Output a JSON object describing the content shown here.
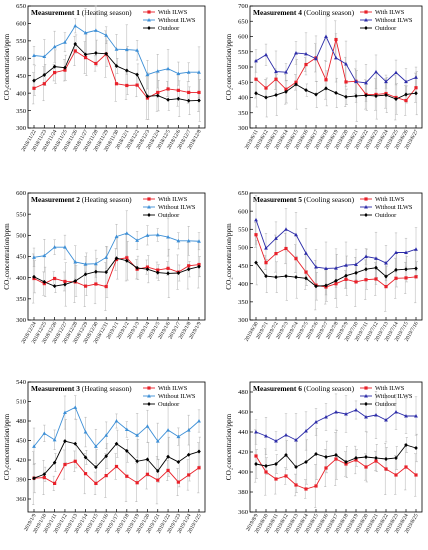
{
  "colors": {
    "with_ilws": "#e8212a",
    "without_ilws": "#3d8fd6",
    "without_ilws_cooling": "#2c2ca8",
    "outdoor": "#000000",
    "error_bars": "#b0b0b0",
    "frame": "#000000"
  },
  "chart_data": [
    {
      "type": "line",
      "title_bold": "Measurement 1",
      "title_rest": " (Heating season)",
      "ylabel": "CO₂concentration/ppm",
      "ylim": [
        300,
        650
      ],
      "yticks": [
        "300",
        "350",
        "400",
        "450",
        "500",
        "550",
        "600",
        "650"
      ],
      "categories": [
        "2018/11/22",
        "2018/11/23",
        "2018/11/24",
        "2018/11/25",
        "2018/11/26",
        "2018/11/27",
        "2018/11/28",
        "2018/11/29",
        "2018/11/30",
        "2018/12/1",
        "2018/12/2",
        "2018/12/3",
        "2018/12/4",
        "2018/12/5",
        "2018/12/6",
        "2018/12/7",
        "2018/12/8"
      ],
      "legend_position": "top-right",
      "series": [
        {
          "name": "With ILWS",
          "values": [
            414,
            427,
            459,
            466,
            521,
            502,
            485,
            512,
            427,
            422,
            423,
            386,
            402,
            412,
            408,
            402,
            402
          ]
        },
        {
          "name": "Without ILWS",
          "values": [
            508,
            505,
            533,
            546,
            593,
            573,
            580,
            566,
            526,
            525,
            523,
            453,
            463,
            470,
            456,
            460,
            460
          ]
        },
        {
          "name": "Outdoor",
          "values": [
            436,
            452,
            476,
            473,
            541,
            511,
            515,
            513,
            478,
            465,
            453,
            391,
            393,
            381,
            384,
            378,
            379
          ]
        }
      ]
    },
    {
      "type": "line",
      "title_bold": "Measurement 4",
      "title_rest": " (Cooling season)",
      "ylabel": "CO₂concentration/ppm",
      "ylim": [
        300,
        700
      ],
      "yticks": [
        "300",
        "350",
        "400",
        "450",
        "500",
        "550",
        "600",
        "650",
        "700"
      ],
      "categories": [
        "2019/6/11",
        "2019/6/12",
        "2019/6/13",
        "2019/6/14",
        "2019/6/15",
        "2019/6/16",
        "2019/6/17",
        "2019/6/18",
        "2019/6/19",
        "2019/6/20",
        "2019/6/21",
        "2019/6/22",
        "2019/6/23",
        "2019/6/24",
        "2019/6/25",
        "2019/6/26",
        "2019/6/27"
      ],
      "legend_position": "top-right",
      "series": [
        {
          "name": "With ILWS",
          "values": [
            460,
            431,
            460,
            427,
            450,
            508,
            530,
            458,
            590,
            451,
            453,
            410,
            410,
            413,
            400,
            390,
            432
          ]
        },
        {
          "name": "Without ILWS",
          "values": [
            520,
            540,
            485,
            483,
            546,
            543,
            527,
            600,
            530,
            510,
            452,
            448,
            484,
            452,
            482,
            452,
            466
          ]
        },
        {
          "name": "Outdoor",
          "values": [
            414,
            400,
            408,
            419,
            443,
            424,
            410,
            430,
            415,
            402,
            405,
            407,
            405,
            408,
            395,
            410,
            414
          ]
        }
      ]
    },
    {
      "type": "line",
      "title_bold": "Measurement 2",
      "title_rest": " (Heating season)",
      "ylabel": "CO₂concentration/ppm",
      "ylim": [
        300,
        600
      ],
      "yticks": [
        "300",
        "350",
        "400",
        "450",
        "500",
        "550",
        "600"
      ],
      "categories": [
        "2018/12/24",
        "2018/12/25",
        "2018/12/26",
        "2018/12/27",
        "2018/12/28",
        "2018/12/29",
        "2018/12/30",
        "2018/12/31",
        "2019/1/1",
        "2019/1/2",
        "2019/1/3",
        "2019/1/4",
        "2019/1/5",
        "2019/1/6",
        "2019/1/7",
        "2019/1/8",
        "2019/1/9"
      ],
      "legend_position": "top-right",
      "series": [
        {
          "name": "With ILWS",
          "values": [
            398,
            386,
            398,
            391,
            390,
            380,
            385,
            379,
            443,
            447,
            420,
            425,
            418,
            422,
            413,
            428,
            431
          ]
        },
        {
          "name": "Without ILWS",
          "values": [
            448,
            452,
            472,
            472,
            437,
            432,
            433,
            448,
            497,
            505,
            488,
            500,
            501,
            496,
            487,
            487,
            486
          ]
        },
        {
          "name": "Outdoor",
          "values": [
            402,
            390,
            380,
            384,
            392,
            408,
            414,
            413,
            446,
            440,
            423,
            420,
            412,
            410,
            411,
            420,
            426
          ]
        }
      ]
    },
    {
      "type": "line",
      "title_bold": "Measurement 5",
      "title_rest": " (Cooling season)",
      "ylabel": "CO₂concentration/ppm",
      "ylim": [
        300,
        650
      ],
      "yticks": [
        "300",
        "350",
        "400",
        "450",
        "500",
        "550",
        "600",
        "650"
      ],
      "categories": [
        "2019/6/30",
        "2019/7/1",
        "2019/7/2",
        "2019/7/3",
        "2019/7/4",
        "2019/7/5",
        "2019/7/6",
        "2019/7/7",
        "2019/7/8",
        "2019/7/9",
        "2019/7/10",
        "2019/7/11",
        "2019/7/12",
        "2019/7/13",
        "2019/7/14",
        "2019/7/15",
        "2019/7/16"
      ],
      "legend_position": "top-right",
      "series": [
        {
          "name": "With ILWS",
          "values": [
            535,
            458,
            483,
            497,
            469,
            432,
            396,
            391,
            400,
            412,
            405,
            411,
            413,
            392,
            415,
            416,
            419
          ]
        },
        {
          "name": "Without ILWS",
          "values": [
            576,
            498,
            525,
            550,
            535,
            484,
            446,
            442,
            443,
            451,
            453,
            475,
            470,
            457,
            486,
            486,
            495
          ]
        },
        {
          "name": "Outdoor",
          "values": [
            458,
            421,
            418,
            421,
            418,
            415,
            393,
            395,
            408,
            422,
            430,
            440,
            444,
            420,
            438,
            440,
            442
          ]
        }
      ]
    },
    {
      "type": "line",
      "title_bold": "Measurement 3",
      "title_rest": " (Heating season)",
      "ylabel": "CO₂concentration/ppm",
      "ylim": [
        340,
        540
      ],
      "yticks": [
        "360",
        "390",
        "420",
        "450",
        "480",
        "510",
        "540"
      ],
      "categories": [
        "2019/1/9",
        "2019/1/10",
        "2019/1/11",
        "2019/1/12",
        "2019/1/13",
        "2019/1/14",
        "2019/1/15",
        "2019/1/16",
        "2019/1/17",
        "2019/1/18",
        "2019/1/19",
        "2019/1/20",
        "2019/1/21",
        "2019/1/22",
        "2019/1/23",
        "2019/1/24",
        "2019/1/25"
      ],
      "legend_position": "top-right",
      "series": [
        {
          "name": "With ILWS",
          "values": [
            392,
            393,
            384,
            413,
            418,
            399,
            384,
            396,
            410,
            395,
            385,
            398,
            389,
            404,
            386,
            397,
            408
          ]
        },
        {
          "name": "Without ILWS",
          "values": [
            441,
            461,
            451,
            493,
            501,
            463,
            441,
            458,
            480,
            467,
            458,
            472,
            449,
            466,
            456,
            466,
            480
          ]
        },
        {
          "name": "Outdoor",
          "values": [
            392,
            398,
            416,
            449,
            445,
            424,
            409,
            426,
            445,
            434,
            418,
            421,
            403,
            425,
            417,
            428,
            433
          ]
        }
      ]
    },
    {
      "type": "line",
      "title_bold": "Measurement 6",
      "title_rest": " (Cooling season)",
      "ylabel": "CO₂concentration/ppm",
      "ylim": [
        360,
        490
      ],
      "yticks": [
        "360",
        "380",
        "400",
        "420",
        "440",
        "460",
        "480"
      ],
      "categories": [
        "2019/8/9",
        "2019/8/10",
        "2019/8/11",
        "2019/8/12",
        "2019/8/13",
        "2019/8/14",
        "2019/8/15",
        "2019/8/16",
        "2019/8/17",
        "2019/8/18",
        "2019/8/19",
        "2019/8/20",
        "2019/8/21",
        "2019/8/22",
        "2019/8/23",
        "2019/8/24",
        "2019/8/25"
      ],
      "legend_position": "top-right",
      "series": [
        {
          "name": "With ILWS",
          "values": [
            416,
            400,
            393,
            396,
            387,
            383,
            386,
            404,
            413,
            408,
            412,
            405,
            411,
            403,
            397,
            405,
            397
          ]
        },
        {
          "name": "Without ILWS",
          "values": [
            440,
            436,
            431,
            437,
            432,
            441,
            450,
            455,
            460,
            458,
            462,
            455,
            457,
            452,
            460,
            456,
            456
          ]
        },
        {
          "name": "Outdoor",
          "values": [
            408,
            406,
            408,
            417,
            405,
            410,
            418,
            415,
            417,
            410,
            414,
            415,
            414,
            413,
            414,
            427,
            424
          ]
        }
      ]
    }
  ]
}
